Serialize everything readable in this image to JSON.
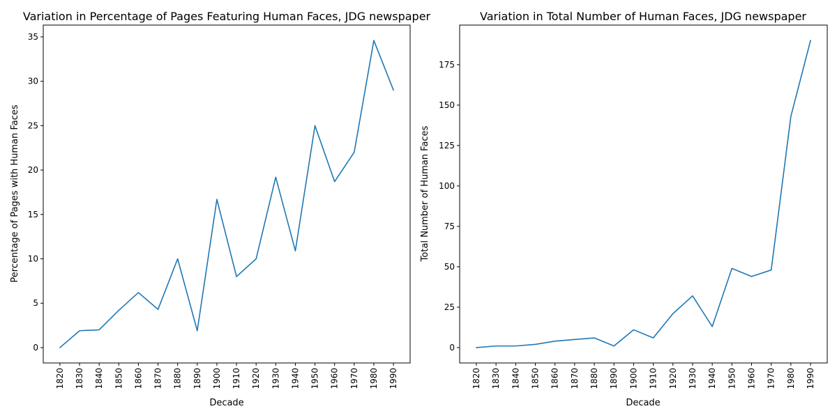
{
  "chart_data": [
    {
      "type": "line",
      "title": "Variation in Percentage of Pages Featuring Human Faces, JDG newspaper",
      "xlabel": "Decade",
      "ylabel": "Percentage of Pages with Human Faces",
      "categories": [
        "1820",
        "1830",
        "1840",
        "1850",
        "1860",
        "1870",
        "1880",
        "1890",
        "1900",
        "1910",
        "1920",
        "1930",
        "1940",
        "1950",
        "1960",
        "1970",
        "1980",
        "1990"
      ],
      "values": [
        0,
        1.9,
        2.0,
        4.2,
        6.2,
        4.3,
        10.0,
        1.9,
        16.7,
        8.0,
        10.0,
        19.2,
        10.9,
        25.0,
        18.7,
        22.0,
        34.6,
        29.0
      ],
      "yticks": [
        0,
        5,
        10,
        15,
        20,
        25,
        30,
        35
      ],
      "ylim": [
        -1.73,
        36.33
      ],
      "grid": false,
      "color": "#1f77b4"
    },
    {
      "type": "line",
      "title": "Variation in Total Number of Human Faces, JDG newspaper",
      "xlabel": "Decade",
      "ylabel": "Total Number of Human Faces",
      "categories": [
        "1820",
        "1830",
        "1840",
        "1850",
        "1860",
        "1870",
        "1880",
        "1890",
        "1900",
        "1910",
        "1920",
        "1930",
        "1940",
        "1950",
        "1960",
        "1970",
        "1980",
        "1990"
      ],
      "values": [
        0,
        1,
        1,
        2,
        4,
        5,
        6,
        1,
        11,
        6,
        21,
        32,
        13,
        49,
        44,
        48,
        143,
        190
      ],
      "yticks": [
        0,
        25,
        50,
        75,
        100,
        125,
        150,
        175
      ],
      "ylim": [
        -9.5,
        199.5
      ],
      "grid": false,
      "color": "#1f77b4"
    }
  ]
}
